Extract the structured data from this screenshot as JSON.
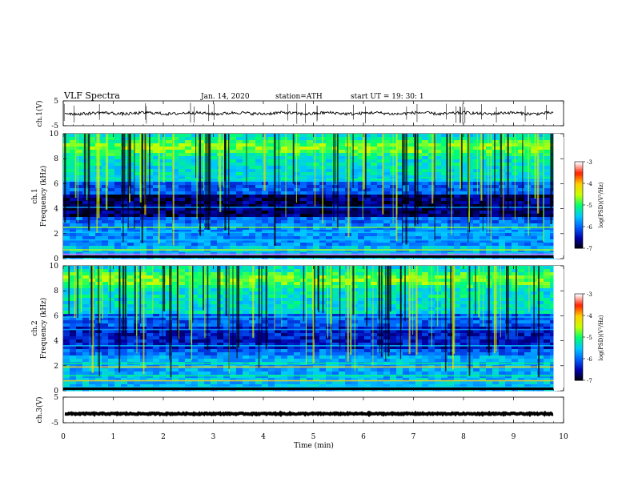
{
  "header": {
    "title": "VLF  Spectra",
    "date": "Jan. 14, 2020",
    "station": "station=ATH",
    "start": "start  UT  =   19: 30: 1"
  },
  "chart_data": {
    "type": "heatmap",
    "x": {
      "label": "Time  (min)",
      "range": [
        0,
        10
      ],
      "ticks": [
        0,
        1,
        2,
        3,
        4,
        5,
        6,
        7,
        8,
        9,
        10
      ],
      "data_end": 9.8
    },
    "panels": [
      {
        "name": "ch.1(V)",
        "kind": "waveform",
        "ylim": [
          -5,
          5
        ],
        "yticks": [
          5,
          -5
        ],
        "baseline": 0,
        "amplitude": 0.6
      },
      {
        "name": "ch.1",
        "kind": "spectrogram",
        "ylabel": "Frequency  (kHz)",
        "ylim": [
          0,
          10
        ],
        "yticks": [
          0,
          2,
          4,
          6,
          8,
          10
        ]
      },
      {
        "name": "ch.2",
        "kind": "spectrogram",
        "ylabel": "Frequency  (kHz)",
        "ylim": [
          0,
          10
        ],
        "yticks": [
          0,
          2,
          4,
          6,
          8,
          10
        ]
      },
      {
        "name": "ch.3(V)",
        "kind": "waveform",
        "ylim": [
          -5,
          5
        ],
        "yticks": [
          5,
          -5
        ],
        "baseline": -1.5,
        "amplitude": 0.25
      }
    ],
    "colorbar": {
      "label": "log(PSD)(V²/Hz)",
      "range": [
        -7,
        -3
      ],
      "ticks": [
        -3,
        -4,
        -5,
        -6,
        -7
      ],
      "colors": [
        "#000000",
        "#0000aa",
        "#0060ff",
        "#00c8ff",
        "#00ff70",
        "#c8ff00",
        "#ffd000",
        "#ff2000",
        "#ffffff"
      ]
    }
  }
}
